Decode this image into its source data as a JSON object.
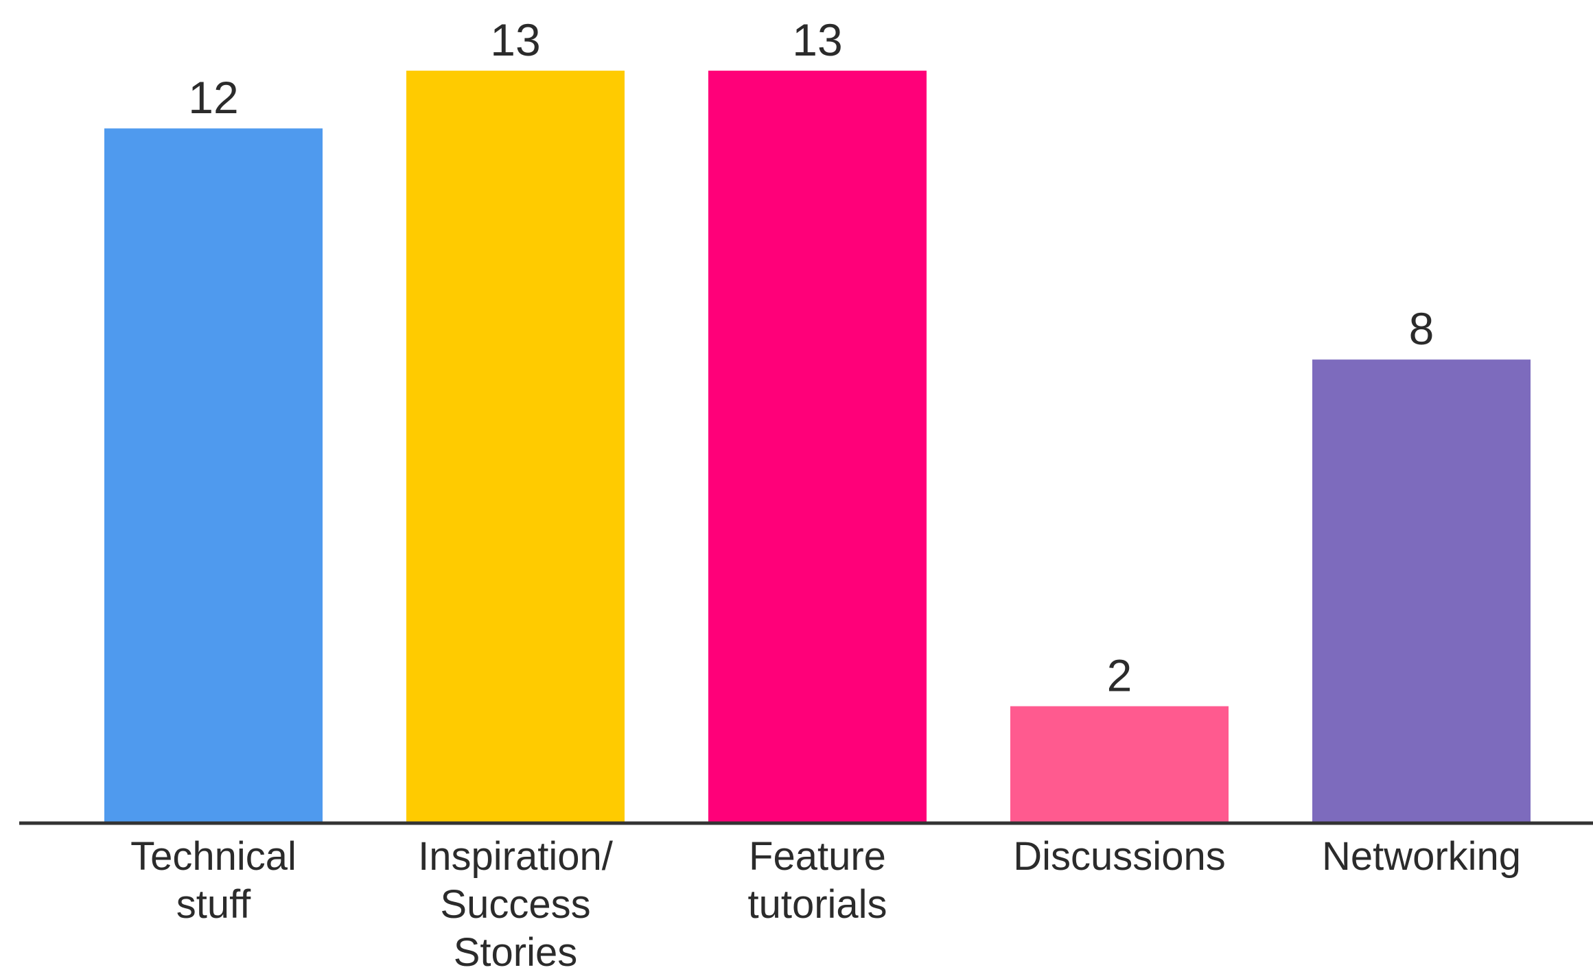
{
  "chart_data": {
    "type": "bar",
    "title": "",
    "xlabel": "",
    "ylabel": "",
    "categories": [
      "Technical stuff",
      "Inspiration/ Success Stories",
      "Feature tutorials",
      "Discussions",
      "Networking"
    ],
    "category_label_lines": [
      [
        "Technical",
        "stuff"
      ],
      [
        "Inspiration/",
        "Success",
        "Stories"
      ],
      [
        "Feature",
        "tutorials"
      ],
      [
        "Discussions"
      ],
      [
        "Networking"
      ]
    ],
    "values": [
      12,
      13,
      13,
      2,
      8
    ],
    "data_labels": [
      "12",
      "13",
      "13",
      "2",
      "8"
    ],
    "colors": [
      "#4f9aee",
      "#ffcb00",
      "#ff0079",
      "#ff5a8f",
      "#7d6bbd"
    ],
    "ylim": [
      0,
      13
    ],
    "grid": false,
    "legend": "none",
    "show_y_axis": false,
    "baseline_color": "#333333"
  }
}
